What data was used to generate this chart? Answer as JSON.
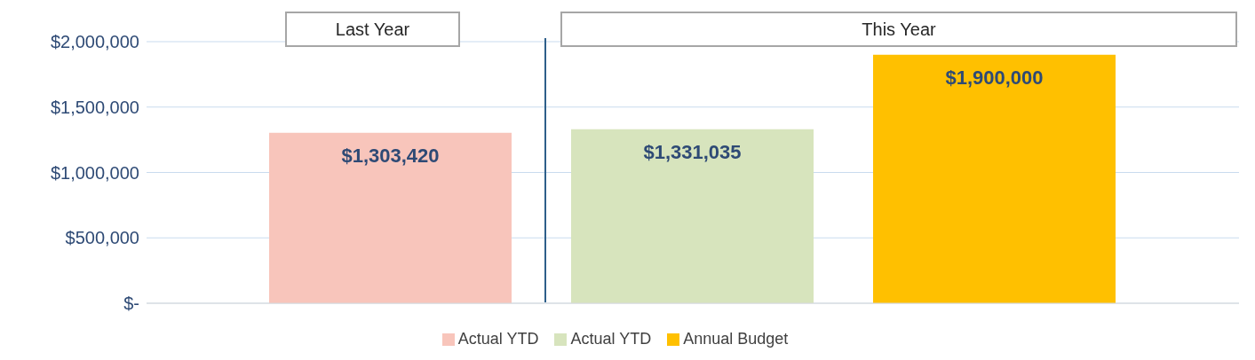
{
  "chart_data": {
    "type": "bar",
    "categories": [
      null
    ],
    "series": [
      {
        "name": "Actual YTD",
        "color": "#f8c5bb",
        "values": [
          1303420
        ]
      },
      {
        "name": "Actual YTD",
        "color": "#d7e4bd",
        "values": [
          1331035
        ]
      },
      {
        "name": "Annual Budget",
        "color": "#ffc000",
        "values": [
          1900000
        ]
      }
    ],
    "value_labels": [
      "$1,303,420",
      "$1,331,035",
      "$1,900,000"
    ],
    "annotations": [
      "Last Year",
      "This Year"
    ],
    "ylim": [
      0,
      2000000
    ],
    "yticks": [
      {
        "value": 0,
        "label": "$-"
      },
      {
        "value": 500000,
        "label": "$500,000"
      },
      {
        "value": 1000000,
        "label": "$1,000,000"
      },
      {
        "value": 1500000,
        "label": "$1,500,000"
      },
      {
        "value": 2000000,
        "label": "$2,000,000"
      }
    ],
    "grid": "y",
    "legend": "bottom"
  }
}
